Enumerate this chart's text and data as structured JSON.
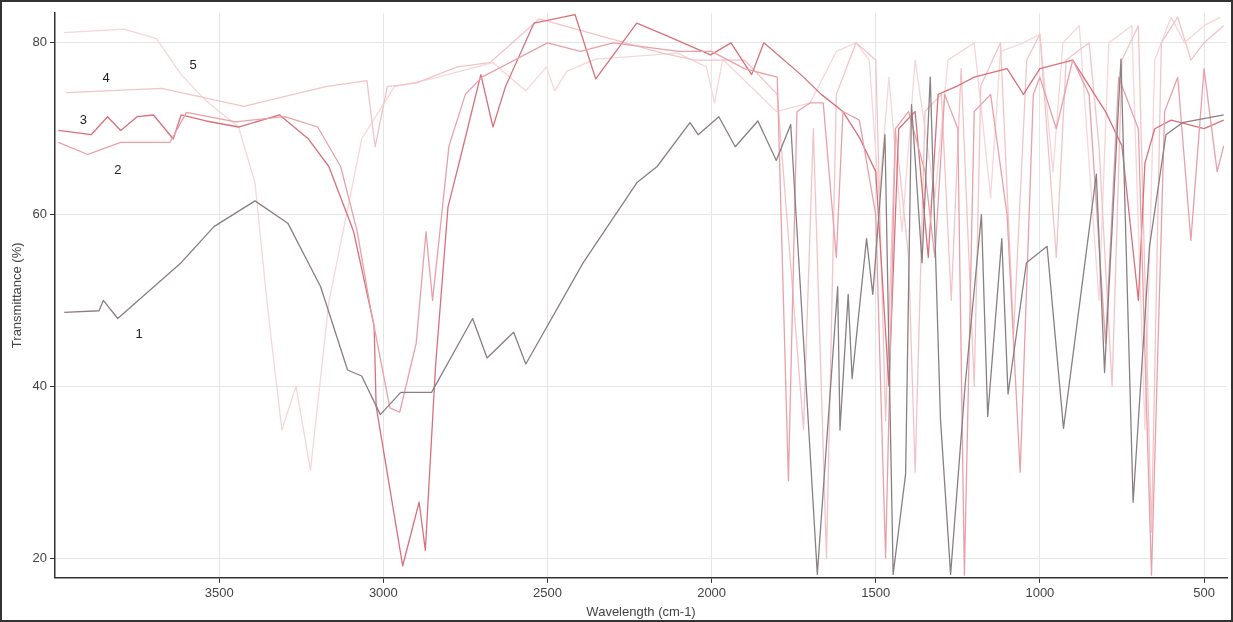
{
  "chart_data": {
    "type": "line",
    "xlabel": "Wavelength (cm-1)",
    "ylabel": "Transmittance (%)",
    "xlim": [
      4000,
      430
    ],
    "ylim": [
      17.7,
      83.5
    ],
    "xticks": [
      3500,
      3000,
      2500,
      2000,
      1500,
      1000,
      500
    ],
    "yticks": [
      20,
      40,
      60,
      80
    ],
    "grid": true,
    "legend": false,
    "marker": "none",
    "line_style": "solid",
    "series": [
      {
        "name": "1",
        "color": "#8a7f82",
        "x": [
          3972,
          3866,
          3853,
          3809,
          3616,
          3516,
          3391,
          3291,
          3191,
          3109,
          3066,
          3009,
          2947,
          2853,
          2728,
          2684,
          2603,
          2566,
          2391,
          2228,
          2166,
          2066,
          2041,
          1978,
          1928,
          1859,
          1803,
          1759,
          1678,
          1616,
          1609,
          1584,
          1572,
          1528,
          1509,
          1472,
          1447,
          1409,
          1391,
          1359,
          1334,
          1303,
          1272,
          1228,
          1178,
          1159,
          1116,
          1097,
          1041,
          978,
          928,
          828,
          803,
          753,
          716,
          666,
          616,
          566,
          440
        ],
        "values": [
          48.6,
          48.8,
          50,
          47.9,
          54.4,
          58.6,
          61.6,
          59,
          51.6,
          41.9,
          41.2,
          36.7,
          39.3,
          39.3,
          47.9,
          43.3,
          46.3,
          42.6,
          54.4,
          63.7,
          65.6,
          70.7,
          69.3,
          71.4,
          67.9,
          70.9,
          66.3,
          70.5,
          18.1,
          51.6,
          34.9,
          50.7,
          40.9,
          57.2,
          50.7,
          69.3,
          18.1,
          29.8,
          72.8,
          54.4,
          76,
          36.3,
          18.1,
          40,
          60,
          36.5,
          57.2,
          39.1,
          54.4,
          56.3,
          35.1,
          64.7,
          41.6,
          78.1,
          26.5,
          56.3,
          69.3,
          70.7,
          71.6
        ]
      },
      {
        "name": "2",
        "color": "#e9a0a8",
        "x": [
          3990,
          3900,
          3800,
          3650,
          3600,
          3450,
          3300,
          3200,
          3130,
          3080,
          3040,
          2980,
          2950,
          2900,
          2870,
          2850,
          2800,
          2750,
          2700,
          2500,
          2400,
          2300,
          2100,
          2000,
          1900,
          1800,
          1766,
          1740,
          1700,
          1660,
          1620,
          1600,
          1550,
          1500,
          1470,
          1440,
          1400,
          1350,
          1320,
          1290,
          1250,
          1230,
          1200,
          1150,
          1100,
          1060,
          1020,
          1000,
          950,
          900,
          850,
          800,
          760,
          700,
          660,
          620,
          580,
          540,
          500,
          460,
          440
        ],
        "values": [
          68.4,
          67,
          68.4,
          68.4,
          71.9,
          70.8,
          71.4,
          70.2,
          65.6,
          58.1,
          49.3,
          37.5,
          37,
          45,
          58,
          50,
          68,
          74,
          76,
          80,
          79,
          80,
          79,
          79,
          77,
          76,
          29,
          72,
          73,
          73,
          55,
          72,
          71,
          60,
          20,
          70,
          72,
          65,
          55,
          74,
          70,
          18,
          72,
          74,
          60,
          30,
          74,
          76,
          70,
          78,
          74,
          45,
          76,
          70,
          18,
          72,
          76,
          57,
          77,
          65,
          68
        ]
      },
      {
        "name": "3",
        "color": "#d9707a",
        "x": [
          3990,
          3890,
          3840,
          3800,
          3750,
          3700,
          3640,
          3616,
          3540,
          3441,
          3316,
          3228,
          3166,
          3091,
          3028,
          3022,
          2941,
          2891,
          2872,
          2841,
          2803,
          2766,
          2703,
          2666,
          2628,
          2541,
          2416,
          2353,
          2228,
          2141,
          2003,
          1941,
          1878,
          1841,
          1728,
          1666,
          1600,
          1550,
          1500,
          1460,
          1430,
          1380,
          1340,
          1310,
          1250,
          1200,
          1100,
          1050,
          1000,
          900,
          850,
          800,
          750,
          700,
          680,
          650,
          600,
          500,
          440
        ],
        "values": [
          69.8,
          69.3,
          71.4,
          69.8,
          71.4,
          71.6,
          68.8,
          71.6,
          70.9,
          70.2,
          71.6,
          68.8,
          65.6,
          58.1,
          47,
          37.7,
          19.1,
          26.5,
          20.9,
          42.3,
          60.9,
          66.5,
          76.3,
          70.2,
          74.9,
          82.3,
          83.3,
          75.8,
          82.3,
          80.9,
          78.6,
          80,
          76.3,
          80,
          76.3,
          74,
          72,
          69,
          65,
          40,
          70,
          72,
          55,
          74,
          75,
          76,
          77,
          74,
          77,
          78,
          75,
          72,
          68,
          50,
          66,
          70,
          71,
          70,
          71
        ]
      },
      {
        "name": "4",
        "color": "#f2c4c8",
        "x": [
          3966,
          3675,
          3425,
          3175,
          3050,
          3025,
          2988,
          2900,
          2775,
          2675,
          2525,
          2150,
          2050,
          1900,
          1800,
          1720,
          1690,
          1650,
          1620,
          1560,
          1500,
          1470,
          1440,
          1400,
          1380,
          1350,
          1300,
          1270,
          1240,
          1200,
          1180,
          1120,
          1080,
          1040,
          1000,
          950,
          920,
          850,
          820,
          780,
          750,
          700,
          660,
          630,
          580,
          540,
          500,
          440
        ],
        "values": [
          74.2,
          74.7,
          72.6,
          74.9,
          75.6,
          67.9,
          74.9,
          75.3,
          77.2,
          77.7,
          82.8,
          78.8,
          78,
          78,
          74,
          35,
          70,
          20,
          74,
          80,
          78,
          36,
          70,
          55,
          30,
          72,
          74,
          50,
          77,
          40,
          75,
          80,
          46,
          78,
          81,
          55,
          78,
          80,
          68,
          40,
          78,
          82,
          23,
          80,
          83,
          78,
          80,
          82
        ]
      },
      {
        "name": "5",
        "color": "#f6d6d8",
        "x": [
          3972,
          3791,
          3691,
          3616,
          3541,
          3441,
          3391,
          3353,
          3309,
          3266,
          3222,
          3166,
          3066,
          2966,
          2853,
          2666,
          2566,
          2503,
          2478,
          2441,
          2353,
          2103,
          2016,
          1991,
          1966,
          1891,
          1803,
          1700,
          1620,
          1560,
          1520,
          1490,
          1460,
          1420,
          1380,
          1320,
          1280,
          1200,
          1150,
          1120,
          1050,
          1000,
          960,
          930,
          880,
          820,
          790,
          720,
          680,
          650,
          600,
          560,
          500,
          450
        ],
        "values": [
          81.2,
          81.6,
          80.5,
          76.3,
          73.3,
          70.2,
          63.7,
          49.3,
          34.9,
          40,
          30.2,
          49.8,
          68.8,
          74.9,
          75.8,
          77.7,
          74.4,
          77.2,
          74.4,
          76.7,
          78.1,
          78.8,
          77.2,
          73,
          78.1,
          75.3,
          72,
          73,
          79,
          80,
          78,
          62,
          76,
          58,
          78,
          62,
          78,
          80,
          62,
          79,
          80,
          81,
          65,
          80,
          82,
          50,
          80,
          82,
          35,
          78,
          83,
          80,
          82,
          83
        ]
      }
    ]
  }
}
